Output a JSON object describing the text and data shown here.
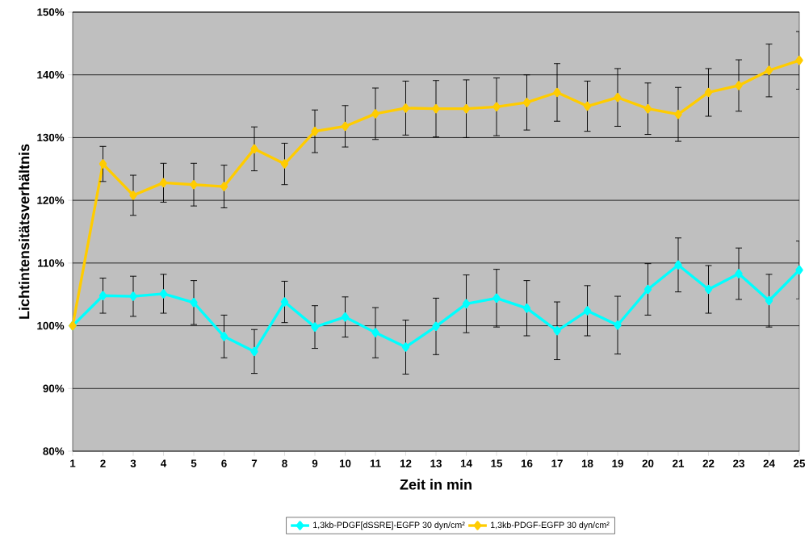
{
  "chart_data": {
    "type": "line",
    "xlabel": "Zeit in min",
    "ylabel": "Lichtintensitätsverhältnis",
    "x": [
      1,
      2,
      3,
      4,
      5,
      6,
      7,
      8,
      9,
      10,
      11,
      12,
      13,
      14,
      15,
      16,
      17,
      18,
      19,
      20,
      21,
      22,
      23,
      24,
      25
    ],
    "series": [
      {
        "name": "1,3kb-PDGF[dSSRE]-EGFP 30 dyn/cm²",
        "color": "#00ffff",
        "values": [
          100,
          104.8,
          104.7,
          105.1,
          103.7,
          98.3,
          95.9,
          103.8,
          99.8,
          101.4,
          98.9,
          96.6,
          99.9,
          103.5,
          104.4,
          102.8,
          99.2,
          102.4,
          100.1,
          105.8,
          109.7,
          105.8,
          108.3,
          104,
          108.9
        ],
        "errors": [
          null,
          2.8,
          3.2,
          3.1,
          3.5,
          3.4,
          3.5,
          3.3,
          3.4,
          3.2,
          4,
          4.3,
          4.5,
          4.6,
          4.6,
          4.4,
          4.6,
          4,
          4.6,
          4.1,
          4.3,
          3.8,
          4.1,
          4.2,
          4.6
        ]
      },
      {
        "name": "1,3kb-PDGF-EGFP 30 dyn/cm²",
        "color": "#ffcc00",
        "values": [
          100,
          125.8,
          120.8,
          122.8,
          122.5,
          122.2,
          128.2,
          125.8,
          131,
          131.8,
          133.8,
          134.7,
          134.6,
          134.6,
          134.9,
          135.6,
          137.2,
          135,
          136.4,
          134.6,
          133.7,
          137.2,
          138.3,
          140.7,
          142.3
        ],
        "errors": [
          null,
          2.8,
          3.2,
          3.1,
          3.4,
          3.4,
          3.5,
          3.3,
          3.4,
          3.3,
          4.1,
          4.3,
          4.5,
          4.6,
          4.6,
          4.4,
          4.6,
          4,
          4.6,
          4.1,
          4.3,
          3.8,
          4.1,
          4.2,
          4.6
        ]
      }
    ],
    "xlim": [
      1,
      25
    ],
    "xticks": [
      1,
      2,
      3,
      4,
      5,
      6,
      7,
      8,
      9,
      10,
      11,
      12,
      13,
      14,
      15,
      16,
      17,
      18,
      19,
      20,
      21,
      22,
      23,
      24,
      25
    ],
    "ylim": [
      80,
      150
    ],
    "yticks": [
      {
        "value": 80,
        "label": "80%"
      },
      {
        "value": 90,
        "label": "90%"
      },
      {
        "value": 100,
        "label": "100%"
      },
      {
        "value": 110,
        "label": "110%"
      },
      {
        "value": 120,
        "label": "120%"
      },
      {
        "value": 130,
        "label": "130%"
      },
      {
        "value": 140,
        "label": "140%"
      },
      {
        "value": 150,
        "label": "150%"
      }
    ],
    "grid": "y",
    "legend": "bottom",
    "marker": "diamond",
    "line_style": "solid"
  }
}
